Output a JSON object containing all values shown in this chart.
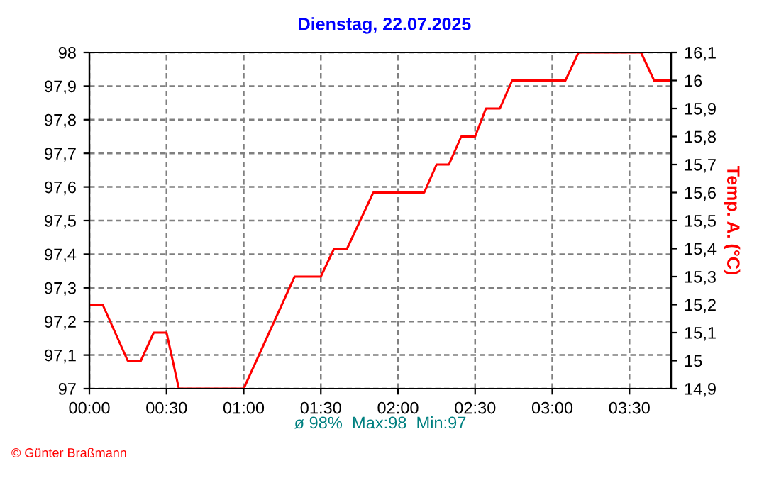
{
  "chart_data": {
    "type": "line",
    "title": "Dienstag, 22.07.2025",
    "y2label": "Temp. A. (°C)",
    "x": [
      0,
      0.086,
      0.248,
      0.334,
      0.417,
      0.5,
      0.58,
      1.0,
      1.33,
      1.5,
      1.586,
      1.67,
      1.84,
      2.17,
      2.25,
      2.33,
      2.41,
      2.5,
      2.57,
      2.66,
      2.74,
      3.085,
      3.17,
      3.575,
      3.66,
      3.77
    ],
    "series": [
      {
        "color": "#ff0000",
        "axis": "y2",
        "values": [
          15.2,
          15.2,
          15.0,
          15.0,
          15.1,
          15.1,
          14.9,
          14.9,
          15.3,
          15.3,
          15.4,
          15.4,
          15.6,
          15.6,
          15.7,
          15.7,
          15.8,
          15.8,
          15.9,
          15.9,
          16.0,
          16.0,
          16.1,
          16.1,
          16.0,
          16.0
        ]
      }
    ],
    "xlim": [
      0,
      3.77
    ],
    "xticks": [
      {
        "value": 0,
        "label": "00:00"
      },
      {
        "value": 0.5,
        "label": "00:30"
      },
      {
        "value": 1,
        "label": "01:00"
      },
      {
        "value": 1.5,
        "label": "01:30"
      },
      {
        "value": 2,
        "label": "02:00"
      },
      {
        "value": 2.5,
        "label": "02:30"
      },
      {
        "value": 3,
        "label": "03:00"
      },
      {
        "value": 3.5,
        "label": "03:30"
      }
    ],
    "ylim": [
      97,
      98
    ],
    "yticks": [
      97,
      {
        "value": 97.1,
        "label": "97,1"
      },
      {
        "value": 97.2,
        "label": "97,2"
      },
      {
        "value": 97.3,
        "label": "97,3"
      },
      {
        "value": 97.4,
        "label": "97,4"
      },
      {
        "value": 97.5,
        "label": "97,5"
      },
      {
        "value": 97.6,
        "label": "97,6"
      },
      {
        "value": 97.7,
        "label": "97,7"
      },
      {
        "value": 97.8,
        "label": "97,8"
      },
      {
        "value": 97.9,
        "label": "97,9"
      },
      98
    ],
    "y2lim": [
      14.9,
      16.1
    ],
    "y2ticks": [
      {
        "value": 14.9,
        "label": "14,9"
      },
      15,
      {
        "value": 15.1,
        "label": "15,1"
      },
      {
        "value": 15.2,
        "label": "15,2"
      },
      {
        "value": 15.3,
        "label": "15,3"
      },
      {
        "value": 15.4,
        "label": "15,4"
      },
      {
        "value": 15.5,
        "label": "15,5"
      },
      {
        "value": 15.6,
        "label": "15,6"
      },
      {
        "value": 15.7,
        "label": "15,7"
      },
      {
        "value": 15.8,
        "label": "15,8"
      },
      {
        "value": 15.9,
        "label": "15,9"
      },
      16,
      {
        "value": 16.1,
        "label": "16,1"
      }
    ],
    "grid": true,
    "line_style": "solid",
    "marker": "none",
    "legend": false,
    "annotations": [
      "ø 98%  Max:98  Min:97",
      "© Günter Braßmann"
    ]
  }
}
